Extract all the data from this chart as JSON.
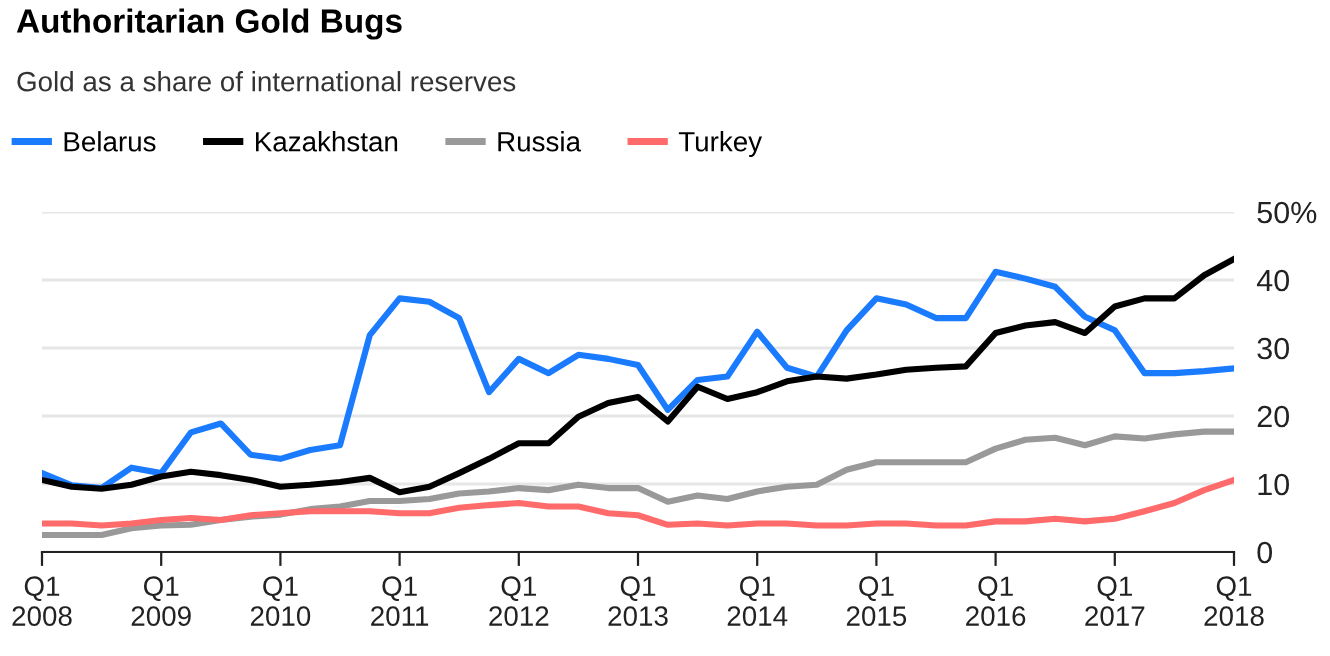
{
  "chart_data": {
    "type": "line",
    "title": "Authoritarian Gold Bugs",
    "subtitle": "Gold as a share of international reserves",
    "categories": [
      "Q1\n2008",
      null,
      null,
      null,
      "Q1\n2009",
      null,
      null,
      null,
      "Q1\n2010",
      null,
      null,
      null,
      "Q1\n2011",
      null,
      null,
      null,
      "Q1\n2012",
      null,
      null,
      null,
      "Q1\n2013",
      null,
      null,
      null,
      "Q1\n2014",
      null,
      null,
      null,
      "Q1\n2015",
      null,
      null,
      null,
      "Q1\n2016",
      null,
      null,
      null,
      "Q1\n2017",
      null,
      null,
      null,
      "Q1\n2018"
    ],
    "series": [
      {
        "name": "Belarus",
        "color": "#1a7bff",
        "values": [
          11.6,
          9.8,
          9.4,
          12.4,
          11.6,
          17.6,
          18.9,
          14.3,
          13.7,
          15.0,
          15.7,
          31.9,
          37.3,
          36.8,
          34.4,
          23.5,
          28.4,
          26.3,
          29.0,
          28.4,
          27.5,
          20.9,
          25.3,
          25.8,
          32.4,
          27.1,
          25.8,
          32.6,
          37.3,
          36.4,
          34.4,
          34.4,
          41.2,
          40.2,
          39.0,
          34.6,
          32.6,
          26.3,
          26.3,
          26.6,
          27.0
        ]
      },
      {
        "name": "Kazakhstan",
        "color": "#000000",
        "values": [
          10.6,
          9.6,
          9.3,
          9.9,
          11.1,
          11.8,
          11.3,
          10.6,
          9.6,
          9.9,
          10.3,
          10.9,
          8.8,
          9.6,
          11.6,
          13.7,
          16.0,
          16.0,
          19.9,
          21.9,
          22.8,
          19.2,
          24.3,
          22.5,
          23.5,
          25.1,
          25.8,
          25.5,
          26.1,
          26.8,
          27.1,
          27.3,
          32.2,
          33.3,
          33.8,
          32.2,
          36.1,
          37.3,
          37.3,
          40.7,
          43.1
        ]
      },
      {
        "name": "Russia",
        "color": "#999999",
        "values": [
          2.5,
          2.5,
          2.5,
          3.5,
          3.9,
          4.0,
          4.7,
          5.2,
          5.5,
          6.3,
          6.7,
          7.5,
          7.5,
          7.8,
          8.6,
          8.9,
          9.4,
          9.1,
          9.9,
          9.4,
          9.4,
          7.4,
          8.3,
          7.8,
          8.9,
          9.6,
          9.9,
          12.1,
          13.2,
          13.2,
          13.2,
          13.2,
          15.2,
          16.5,
          16.8,
          15.7,
          17.0,
          16.7,
          17.3,
          17.7,
          17.7
        ]
      },
      {
        "name": "Turkey",
        "color": "#ff6b6b",
        "values": [
          4.2,
          4.2,
          3.9,
          4.2,
          4.7,
          5.0,
          4.7,
          5.4,
          5.7,
          6.0,
          6.0,
          6.0,
          5.7,
          5.7,
          6.5,
          6.9,
          7.2,
          6.7,
          6.7,
          5.7,
          5.4,
          4.0,
          4.2,
          3.9,
          4.2,
          4.2,
          3.9,
          3.9,
          4.2,
          4.2,
          3.9,
          3.9,
          4.5,
          4.5,
          4.9,
          4.5,
          4.9,
          6.0,
          7.2,
          9.1,
          10.6
        ]
      }
    ],
    "ylim": [
      0,
      50
    ],
    "yticks": [
      0,
      10,
      20,
      30,
      40,
      {
        "value": 50,
        "label": "50%"
      }
    ],
    "grid": "y",
    "legend": "top left",
    "marker": "none",
    "line_style": "solid"
  }
}
